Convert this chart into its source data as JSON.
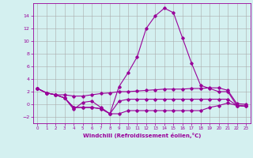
{
  "x": [
    0,
    1,
    2,
    3,
    4,
    5,
    6,
    7,
    8,
    9,
    10,
    11,
    12,
    13,
    14,
    15,
    16,
    17,
    18,
    19,
    20,
    21,
    22,
    23
  ],
  "line1": [
    2.5,
    1.8,
    1.5,
    1.0,
    -0.8,
    0.3,
    0.5,
    -0.5,
    -1.5,
    2.8,
    5.0,
    7.5,
    12.0,
    14.0,
    15.2,
    14.5,
    10.5,
    6.5,
    3.0,
    2.5,
    2.0,
    2.0,
    -0.2,
    -0.3
  ],
  "line2": [
    2.5,
    1.8,
    1.5,
    1.5,
    1.3,
    1.3,
    1.5,
    1.7,
    1.8,
    2.0,
    2.0,
    2.1,
    2.2,
    2.3,
    2.4,
    2.4,
    2.4,
    2.5,
    2.5,
    2.6,
    2.6,
    2.2,
    0.1,
    0.0
  ],
  "line3": [
    2.5,
    1.8,
    1.5,
    1.0,
    -0.5,
    -0.5,
    -0.5,
    -0.7,
    -1.5,
    0.5,
    0.8,
    0.8,
    0.8,
    0.8,
    0.8,
    0.8,
    0.8,
    0.8,
    0.8,
    0.8,
    0.8,
    0.8,
    -0.2,
    -0.3
  ],
  "line4": [
    2.5,
    1.8,
    1.5,
    1.0,
    -0.5,
    -0.5,
    -0.5,
    -0.7,
    -1.5,
    -1.5,
    -1.0,
    -1.0,
    -1.0,
    -1.0,
    -1.0,
    -1.0,
    -1.0,
    -1.0,
    -1.0,
    -0.5,
    -0.2,
    0.2,
    -0.2,
    -0.3
  ],
  "line_color": "#990099",
  "bg_color": "#d4f0f0",
  "grid_color": "#aaaaaa",
  "xlabel": "Windchill (Refroidissement éolien,°C)",
  "xlim": [
    -0.5,
    23.5
  ],
  "ylim": [
    -3,
    16
  ],
  "yticks": [
    -2,
    0,
    2,
    4,
    6,
    8,
    10,
    12,
    14
  ],
  "xticks": [
    0,
    1,
    2,
    3,
    4,
    5,
    6,
    7,
    8,
    9,
    10,
    11,
    12,
    13,
    14,
    15,
    16,
    17,
    18,
    19,
    20,
    21,
    22,
    23
  ]
}
